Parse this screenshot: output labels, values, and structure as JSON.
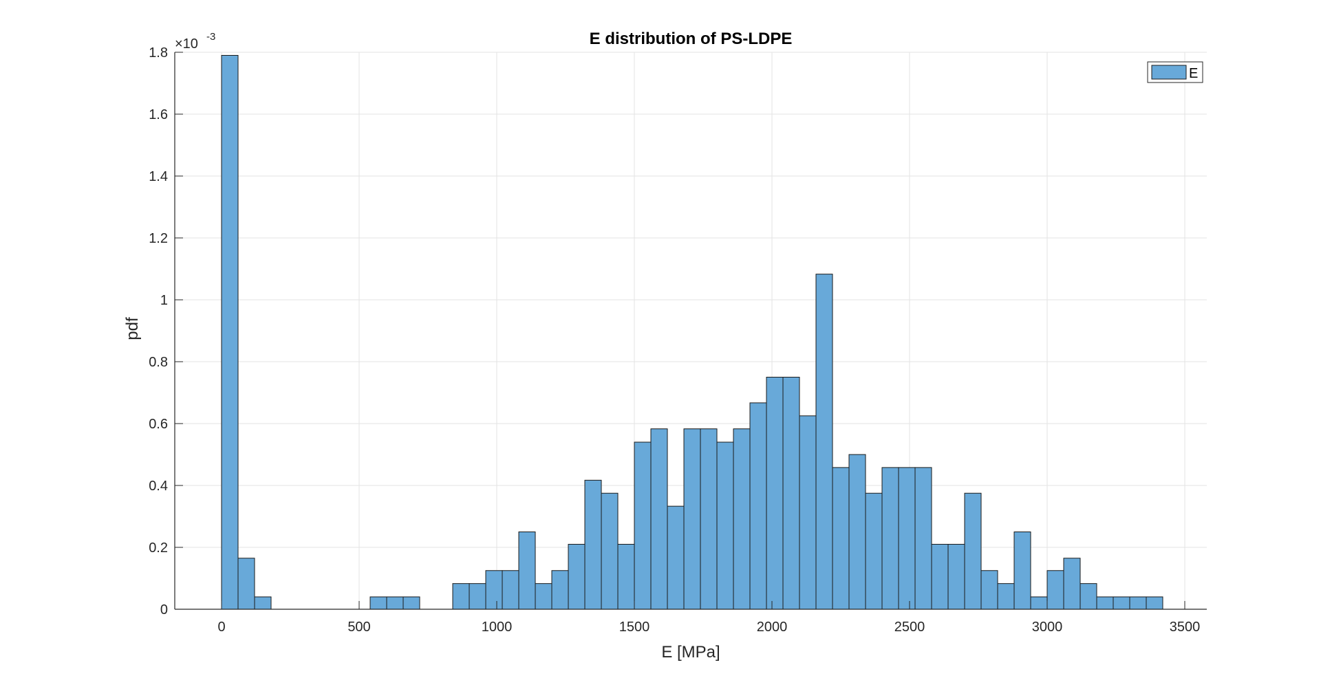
{
  "chart_data": {
    "type": "bar",
    "title": "E distribution of PS-LDPE",
    "xlabel": "E [MPa]",
    "ylabel": "pdf",
    "y_multiplier": {
      "base": "×10",
      "exponent": "-3"
    },
    "xlim": [
      -170,
      3580
    ],
    "ylim": [
      0,
      1.8
    ],
    "xticks": [
      0,
      500,
      1000,
      1500,
      2000,
      2500,
      3000,
      3500
    ],
    "yticks": [
      0,
      0.2,
      0.4,
      0.6,
      0.8,
      1,
      1.2,
      1.4,
      1.6,
      1.8
    ],
    "ytick_labels": [
      "0",
      "0.2",
      "0.4",
      "0.6",
      "0.8",
      "1",
      "1.2",
      "1.4",
      "1.6",
      "1.8"
    ],
    "bin_start": 0,
    "bin_width": 60,
    "values": [
      1.79,
      0.165,
      0.04,
      0,
      0,
      0,
      0,
      0,
      0,
      0.04,
      0.04,
      0.04,
      0,
      0,
      0.083,
      0.083,
      0.125,
      0.125,
      0.25,
      0.083,
      0.125,
      0.21,
      0.417,
      0.375,
      0.21,
      0.54,
      0.583,
      0.333,
      0.583,
      0.583,
      0.54,
      0.583,
      0.667,
      0.75,
      0.75,
      0.625,
      1.083,
      0.458,
      0.5,
      0.375,
      0.458,
      0.458,
      0.458,
      0.21,
      0.21,
      0.375,
      0.125,
      0.083,
      0.25,
      0.04,
      0.125,
      0.165,
      0.083,
      0.04,
      0.04,
      0.04,
      0.04
    ],
    "grid": true,
    "legend": {
      "position": "top-right",
      "entries": [
        "E"
      ]
    },
    "colors": {
      "bar_fill": "#68a9d9",
      "bar_edge": "#1a1a1a",
      "grid": "#e3e3e3",
      "axis": "#262626"
    }
  }
}
